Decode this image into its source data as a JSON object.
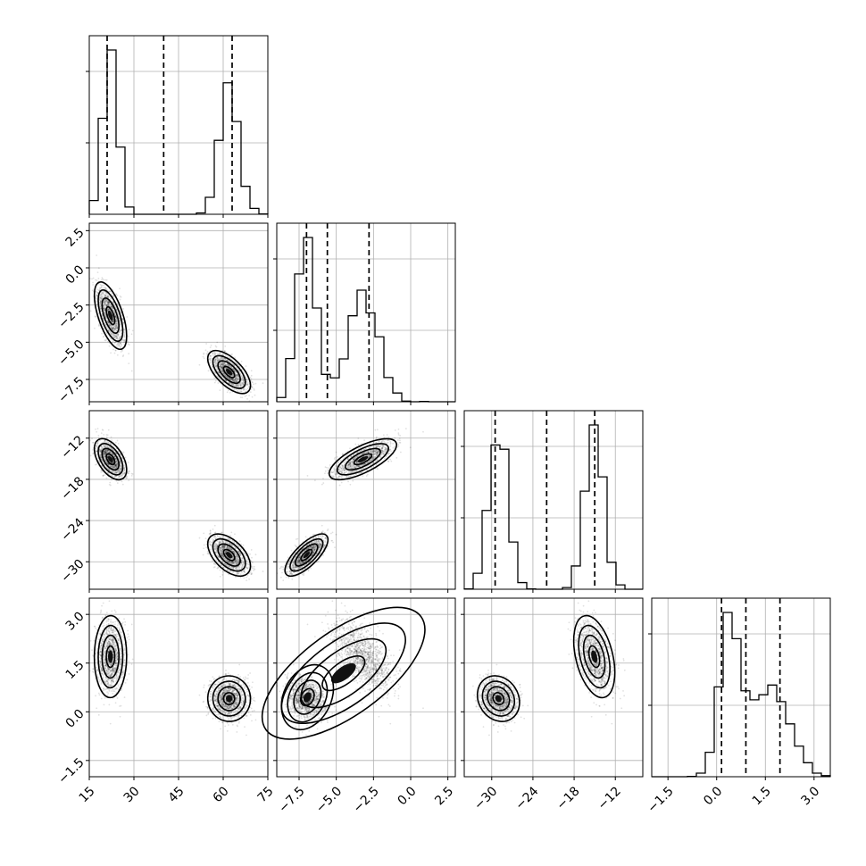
{
  "chart_data": {
    "type": "corner",
    "title": "",
    "grid": true,
    "params": [
      {
        "range": [
          15,
          75
        ],
        "ticks": [
          15,
          30,
          45,
          60,
          75
        ],
        "tick_labels": [
          "15",
          "30",
          "45",
          "60",
          "75"
        ],
        "quantiles": [
          21,
          40,
          63
        ],
        "modes": [
          {
            "mu": 22,
            "sd": 2.3,
            "w": 0.5
          },
          {
            "mu": 62,
            "sd": 3.0,
            "w": 0.5
          }
        ]
      },
      {
        "range": [
          -9,
          3
        ],
        "ticks": [
          -7.5,
          -5.0,
          -2.5,
          0.0,
          2.5
        ],
        "tick_labels": [
          "−7.5",
          "−5.0",
          "−2.5",
          "0.0",
          "2.5"
        ],
        "quantiles": [
          -7.0,
          -5.6,
          -2.8
        ],
        "modes": [
          {
            "mu": -3.2,
            "sd": 1.0,
            "w": 0.5
          },
          {
            "mu": -7.0,
            "sd": 0.6,
            "w": 0.5
          }
        ]
      },
      {
        "range": [
          -34,
          -8
        ],
        "ticks": [
          -30,
          -24,
          -18,
          -12
        ],
        "tick_labels": [
          "−30",
          "−24",
          "−18",
          "−12"
        ],
        "quantiles": [
          -29.5,
          -22,
          -15
        ],
        "modes": [
          {
            "mu": -15,
            "sd": 1.3,
            "w": 0.5
          },
          {
            "mu": -29,
            "sd": 1.3,
            "w": 0.5
          }
        ]
      },
      {
        "range": [
          -2,
          3.5
        ],
        "ticks": [
          -1.5,
          0.0,
          1.5,
          3.0
        ],
        "tick_labels": [
          "−1.5",
          "0.0",
          "1.5",
          "3.0"
        ],
        "quantiles": [
          0.15,
          0.9,
          1.95
        ],
        "modes": [
          {
            "mu": 1.7,
            "sd": 0.55,
            "w": 0.5
          },
          {
            "mu": 0.4,
            "sd": 0.45,
            "w": 0.5
          }
        ]
      }
    ],
    "corr": [
      [
        [
          1,
          1,
          1,
          1
        ],
        [
          1,
          1,
          1,
          1
        ],
        [
          1,
          1,
          1,
          1
        ],
        [
          1,
          1,
          1,
          1
        ]
      ],
      [
        [
          1,
          1,
          1,
          1
        ],
        [
          1,
          1,
          1,
          1
        ],
        [
          1,
          1,
          1,
          1
        ],
        [
          1,
          1,
          1,
          1
        ]
      ]
    ],
    "correlation": [
      [
        0,
        0,
        0,
        0
      ],
      [
        -0.6,
        0,
        0,
        0
      ],
      [
        -0.6,
        0.6,
        0,
        0
      ],
      [
        -0.3,
        -0.7,
        -0.3,
        0
      ]
    ]
  }
}
